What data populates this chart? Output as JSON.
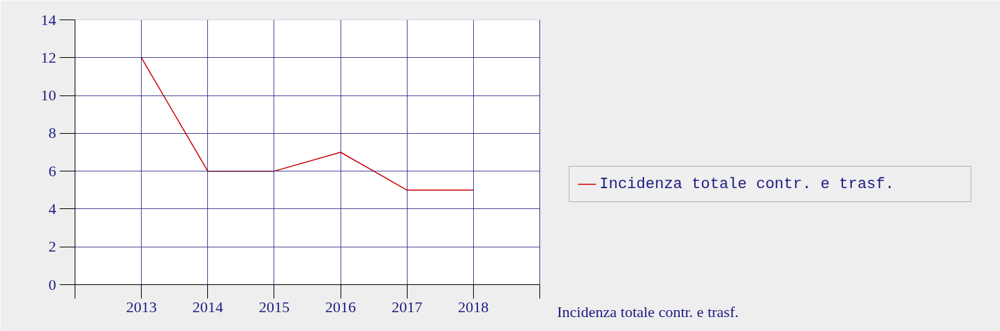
{
  "chart_data": {
    "type": "line",
    "xlabel": "Incidenza totale contr. e trasf.",
    "categories": [
      "2013",
      "2014",
      "2015",
      "2016",
      "2017",
      "2018"
    ],
    "series": [
      {
        "name": "Incidenza totale contr. e trasf.",
        "color": "#cc0000",
        "values": [
          12,
          6,
          6,
          7,
          5,
          5
        ]
      }
    ],
    "ylim": [
      0,
      14
    ],
    "yticks": [
      0,
      2,
      4,
      6,
      8,
      10,
      12,
      14
    ],
    "grid": true,
    "legend": "right"
  }
}
